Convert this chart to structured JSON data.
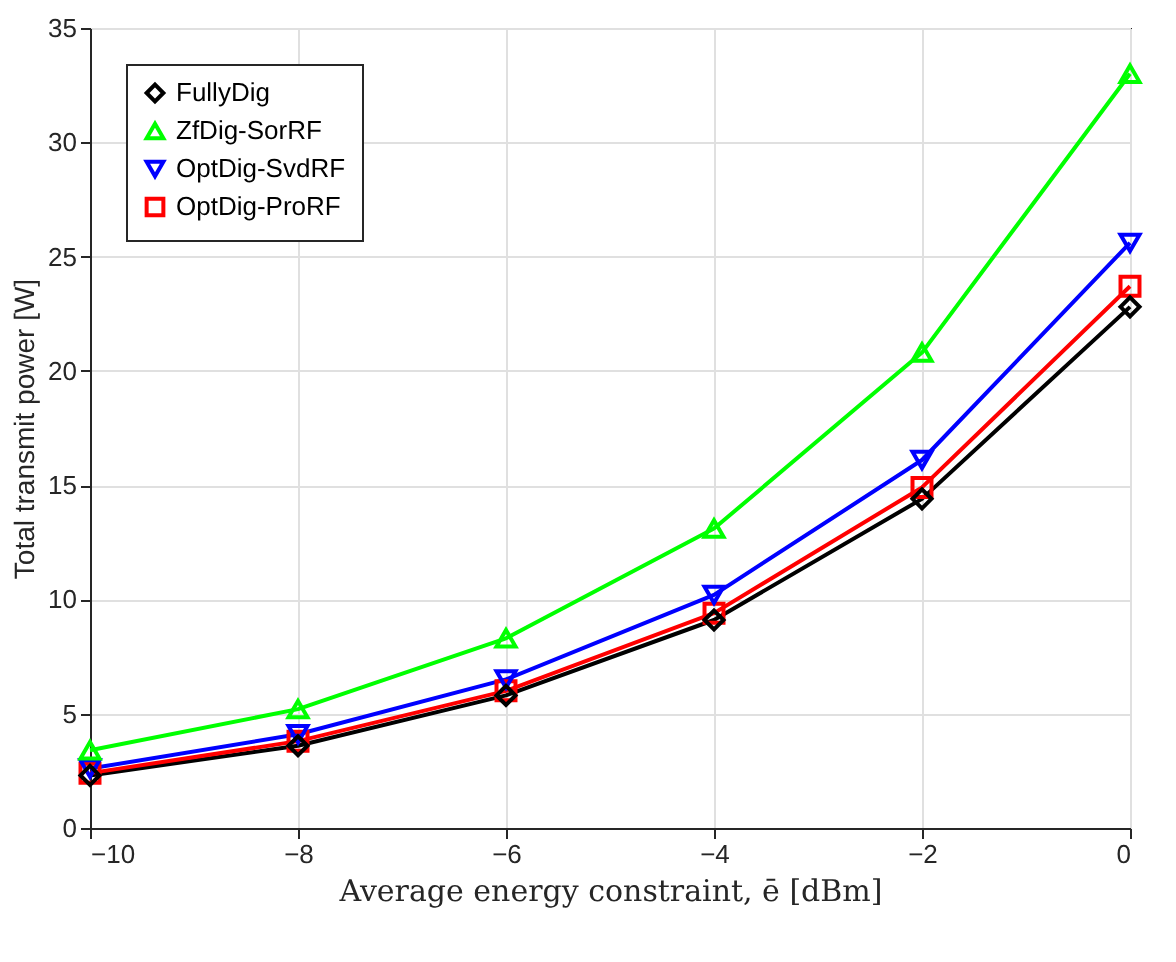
{
  "chart_data": {
    "type": "line",
    "xlabel": "Average energy constraint, ē [dBm]",
    "ylabel": "Total transmit power [W]",
    "x": [
      -10,
      -8,
      -6,
      -4,
      -2,
      0
    ],
    "series": [
      {
        "name": "FullyDig",
        "color": "#000000",
        "marker": "diamond",
        "values": [
          2.3,
          3.6,
          5.8,
          9.1,
          14.4,
          22.8
        ]
      },
      {
        "name": "ZfDig-SorRF",
        "color": "#00ff00",
        "marker": "triangle",
        "values": [
          3.4,
          5.2,
          8.3,
          13.1,
          20.8,
          33.0
        ]
      },
      {
        "name": "OptDig-SvdRF",
        "color": "#0000ff",
        "marker": "triangle-down",
        "values": [
          2.6,
          4.1,
          6.5,
          10.2,
          16.1,
          25.6
        ]
      },
      {
        "name": "OptDig-ProRF",
        "color": "#ff0000",
        "marker": "square",
        "values": [
          2.4,
          3.8,
          6.0,
          9.4,
          14.9,
          23.7
        ]
      }
    ],
    "xlim": [
      -10,
      0
    ],
    "xticks": [
      -10,
      -8,
      -6,
      -4,
      -2,
      0
    ],
    "ylim": [
      0,
      35
    ],
    "yticks": [
      0,
      5,
      10,
      15,
      20,
      25,
      30,
      35
    ],
    "grid": true,
    "legend": "top left",
    "line_style": "solid"
  }
}
